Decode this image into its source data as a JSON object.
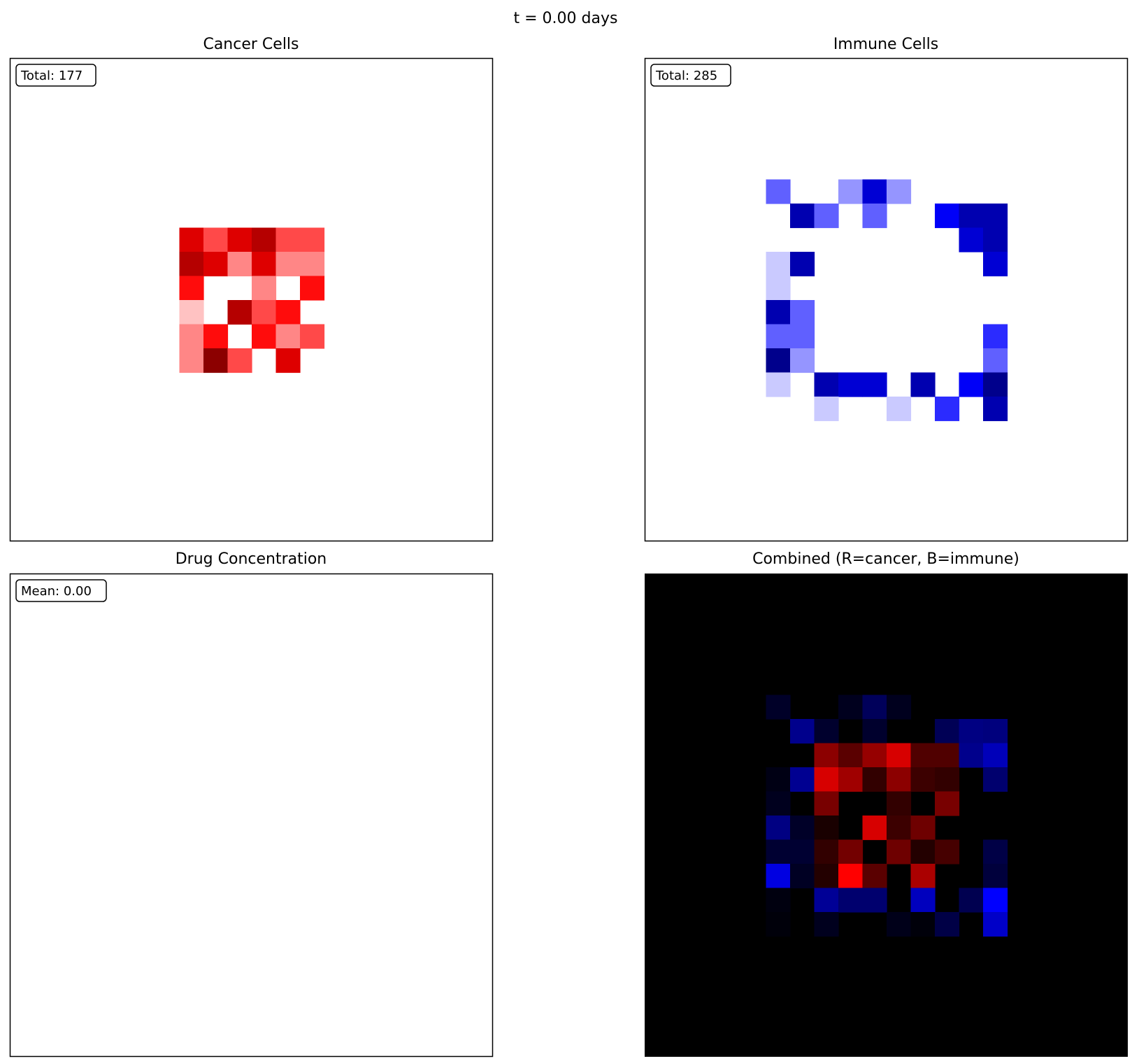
{
  "suptitle": "t = 0.00 days",
  "panels": {
    "cancer": {
      "title": "Cancer Cells",
      "badge": "Total: 177"
    },
    "immune": {
      "title": "Immune Cells",
      "badge": "Total: 285"
    },
    "drug": {
      "title": "Drug Concentration",
      "badge": "Mean: 0.00"
    },
    "combined": {
      "title": "Combined (R=cancer, B=immune)"
    }
  },
  "chart_data": [
    {
      "type": "heatmap",
      "title": "Cancer Cells",
      "colormap": "white-to-red",
      "grid_size": [
        20,
        20
      ],
      "vmax": 7,
      "annotation": "Total: 177",
      "cells": [
        {
          "row": 7,
          "col": 7,
          "value": 5
        },
        {
          "row": 7,
          "col": 8,
          "value": 3
        },
        {
          "row": 7,
          "col": 9,
          "value": 5
        },
        {
          "row": 7,
          "col": 10,
          "value": 6
        },
        {
          "row": 7,
          "col": 11,
          "value": 3
        },
        {
          "row": 7,
          "col": 12,
          "value": 3
        },
        {
          "row": 8,
          "col": 7,
          "value": 6
        },
        {
          "row": 8,
          "col": 8,
          "value": 5
        },
        {
          "row": 8,
          "col": 9,
          "value": 2
        },
        {
          "row": 8,
          "col": 10,
          "value": 5
        },
        {
          "row": 8,
          "col": 11,
          "value": 2
        },
        {
          "row": 8,
          "col": 12,
          "value": 2
        },
        {
          "row": 9,
          "col": 7,
          "value": 4
        },
        {
          "row": 9,
          "col": 10,
          "value": 2
        },
        {
          "row": 9,
          "col": 12,
          "value": 4
        },
        {
          "row": 10,
          "col": 7,
          "value": 1
        },
        {
          "row": 10,
          "col": 9,
          "value": 6
        },
        {
          "row": 10,
          "col": 10,
          "value": 3
        },
        {
          "row": 10,
          "col": 11,
          "value": 4
        },
        {
          "row": 11,
          "col": 7,
          "value": 2
        },
        {
          "row": 11,
          "col": 8,
          "value": 4
        },
        {
          "row": 11,
          "col": 10,
          "value": 4
        },
        {
          "row": 11,
          "col": 11,
          "value": 2
        },
        {
          "row": 11,
          "col": 12,
          "value": 3
        },
        {
          "row": 12,
          "col": 7,
          "value": 2
        },
        {
          "row": 12,
          "col": 8,
          "value": 7
        },
        {
          "row": 12,
          "col": 9,
          "value": 3
        },
        {
          "row": 12,
          "col": 11,
          "value": 5
        }
      ]
    },
    {
      "type": "heatmap",
      "title": "Immune Cells",
      "colormap": "white-to-blue",
      "grid_size": [
        20,
        20
      ],
      "vmax": 8,
      "annotation": "Total: 285",
      "cells": [
        {
          "row": 5,
          "col": 5,
          "value": 3
        },
        {
          "row": 5,
          "col": 8,
          "value": 2
        },
        {
          "row": 5,
          "col": 9,
          "value": 6
        },
        {
          "row": 5,
          "col": 10,
          "value": 2
        },
        {
          "row": 6,
          "col": 6,
          "value": 7
        },
        {
          "row": 6,
          "col": 7,
          "value": 3
        },
        {
          "row": 6,
          "col": 9,
          "value": 3
        },
        {
          "row": 6,
          "col": 12,
          "value": 5
        },
        {
          "row": 6,
          "col": 13,
          "value": 7
        },
        {
          "row": 6,
          "col": 14,
          "value": 7
        },
        {
          "row": 7,
          "col": 13,
          "value": 6
        },
        {
          "row": 7,
          "col": 14,
          "value": 7
        },
        {
          "row": 8,
          "col": 5,
          "value": 1
        },
        {
          "row": 8,
          "col": 6,
          "value": 7
        },
        {
          "row": 8,
          "col": 14,
          "value": 6
        },
        {
          "row": 9,
          "col": 5,
          "value": 1
        },
        {
          "row": 10,
          "col": 5,
          "value": 7
        },
        {
          "row": 10,
          "col": 6,
          "value": 3
        },
        {
          "row": 11,
          "col": 5,
          "value": 3
        },
        {
          "row": 11,
          "col": 6,
          "value": 3
        },
        {
          "row": 11,
          "col": 14,
          "value": 4
        },
        {
          "row": 12,
          "col": 5,
          "value": 8
        },
        {
          "row": 12,
          "col": 6,
          "value": 2
        },
        {
          "row": 12,
          "col": 14,
          "value": 3
        },
        {
          "row": 13,
          "col": 5,
          "value": 1
        },
        {
          "row": 13,
          "col": 7,
          "value": 7
        },
        {
          "row": 13,
          "col": 8,
          "value": 6
        },
        {
          "row": 13,
          "col": 9,
          "value": 6
        },
        {
          "row": 13,
          "col": 11,
          "value": 7
        },
        {
          "row": 13,
          "col": 13,
          "value": 5
        },
        {
          "row": 13,
          "col": 14,
          "value": 8
        },
        {
          "row": 14,
          "col": 7,
          "value": 1
        },
        {
          "row": 14,
          "col": 10,
          "value": 1
        },
        {
          "row": 14,
          "col": 12,
          "value": 4
        },
        {
          "row": 14,
          "col": 14,
          "value": 7
        }
      ]
    },
    {
      "type": "heatmap",
      "title": "Drug Concentration",
      "colormap": "white-to-green",
      "grid_size": [
        20,
        20
      ],
      "annotation": "Mean: 0.00",
      "cells": []
    },
    {
      "type": "heatmap",
      "title": "Combined (R=cancer, B=immune)",
      "colormap": "rgb",
      "grid_size": [
        20,
        20
      ],
      "background": "#000000",
      "cells": [
        {
          "row": 5,
          "col": 5,
          "r": 0,
          "b": 40
        },
        {
          "row": 5,
          "col": 8,
          "r": 0,
          "b": 30
        },
        {
          "row": 5,
          "col": 9,
          "r": 0,
          "b": 90
        },
        {
          "row": 5,
          "col": 10,
          "r": 0,
          "b": 30
        },
        {
          "row": 6,
          "col": 6,
          "r": 0,
          "b": 140
        },
        {
          "row": 6,
          "col": 7,
          "r": 0,
          "b": 45
        },
        {
          "row": 6,
          "col": 9,
          "r": 0,
          "b": 45
        },
        {
          "row": 6,
          "col": 12,
          "r": 0,
          "b": 85
        },
        {
          "row": 6,
          "col": 13,
          "r": 0,
          "b": 130
        },
        {
          "row": 6,
          "col": 14,
          "r": 0,
          "b": 125
        },
        {
          "row": 7,
          "col": 7,
          "r": 140,
          "b": 0
        },
        {
          "row": 7,
          "col": 8,
          "r": 90,
          "b": 0
        },
        {
          "row": 7,
          "col": 9,
          "r": 150,
          "b": 0
        },
        {
          "row": 7,
          "col": 10,
          "r": 215,
          "b": 0
        },
        {
          "row": 7,
          "col": 11,
          "r": 80,
          "b": 0
        },
        {
          "row": 7,
          "col": 12,
          "r": 80,
          "b": 0
        },
        {
          "row": 7,
          "col": 13,
          "r": 0,
          "b": 140
        },
        {
          "row": 7,
          "col": 14,
          "r": 0,
          "b": 185
        },
        {
          "row": 8,
          "col": 5,
          "r": 0,
          "b": 20
        },
        {
          "row": 8,
          "col": 6,
          "r": 0,
          "b": 145
        },
        {
          "row": 8,
          "col": 7,
          "r": 215,
          "b": 0
        },
        {
          "row": 8,
          "col": 8,
          "r": 160,
          "b": 0
        },
        {
          "row": 8,
          "col": 9,
          "r": 50,
          "b": 0
        },
        {
          "row": 8,
          "col": 10,
          "r": 140,
          "b": 0
        },
        {
          "row": 8,
          "col": 11,
          "r": 60,
          "b": 0
        },
        {
          "row": 8,
          "col": 12,
          "r": 50,
          "b": 0
        },
        {
          "row": 8,
          "col": 14,
          "r": 0,
          "b": 110
        },
        {
          "row": 9,
          "col": 5,
          "r": 0,
          "b": 30
        },
        {
          "row": 9,
          "col": 7,
          "r": 120,
          "b": 0
        },
        {
          "row": 9,
          "col": 10,
          "r": 50,
          "b": 0
        },
        {
          "row": 9,
          "col": 12,
          "r": 120,
          "b": 0
        },
        {
          "row": 10,
          "col": 5,
          "r": 0,
          "b": 130
        },
        {
          "row": 10,
          "col": 6,
          "r": 0,
          "b": 40
        },
        {
          "row": 10,
          "col": 7,
          "r": 25,
          "b": 0
        },
        {
          "row": 10,
          "col": 9,
          "r": 215,
          "b": 0
        },
        {
          "row": 10,
          "col": 10,
          "r": 60,
          "b": 0
        },
        {
          "row": 10,
          "col": 11,
          "r": 110,
          "b": 0
        },
        {
          "row": 11,
          "col": 5,
          "r": 0,
          "b": 50
        },
        {
          "row": 11,
          "col": 6,
          "r": 0,
          "b": 50
        },
        {
          "row": 11,
          "col": 7,
          "r": 50,
          "b": 0
        },
        {
          "row": 11,
          "col": 8,
          "r": 115,
          "b": 0
        },
        {
          "row": 11,
          "col": 10,
          "r": 110,
          "b": 0
        },
        {
          "row": 11,
          "col": 11,
          "r": 35,
          "b": 0
        },
        {
          "row": 11,
          "col": 12,
          "r": 70,
          "b": 0
        },
        {
          "row": 11,
          "col": 14,
          "r": 0,
          "b": 70
        },
        {
          "row": 12,
          "col": 5,
          "r": 0,
          "b": 225
        },
        {
          "row": 12,
          "col": 6,
          "r": 0,
          "b": 35
        },
        {
          "row": 12,
          "col": 7,
          "r": 35,
          "b": 0
        },
        {
          "row": 12,
          "col": 8,
          "r": 255,
          "b": 0
        },
        {
          "row": 12,
          "col": 9,
          "r": 90,
          "b": 0
        },
        {
          "row": 12,
          "col": 11,
          "r": 170,
          "b": 0
        },
        {
          "row": 12,
          "col": 14,
          "r": 0,
          "b": 60
        },
        {
          "row": 13,
          "col": 5,
          "r": 0,
          "b": 15
        },
        {
          "row": 13,
          "col": 7,
          "r": 0,
          "b": 150
        },
        {
          "row": 13,
          "col": 8,
          "r": 0,
          "b": 110
        },
        {
          "row": 13,
          "col": 9,
          "r": 0,
          "b": 110
        },
        {
          "row": 13,
          "col": 11,
          "r": 0,
          "b": 190
        },
        {
          "row": 13,
          "col": 13,
          "r": 0,
          "b": 80
        },
        {
          "row": 13,
          "col": 14,
          "r": 0,
          "b": 255
        },
        {
          "row": 14,
          "col": 5,
          "r": 0,
          "b": 10
        },
        {
          "row": 14,
          "col": 7,
          "r": 0,
          "b": 30
        },
        {
          "row": 14,
          "col": 10,
          "r": 0,
          "b": 25
        },
        {
          "row": 14,
          "col": 11,
          "r": 0,
          "b": 10
        },
        {
          "row": 14,
          "col": 12,
          "r": 0,
          "b": 70
        },
        {
          "row": 14,
          "col": 14,
          "r": 0,
          "b": 200
        }
      ]
    }
  ]
}
